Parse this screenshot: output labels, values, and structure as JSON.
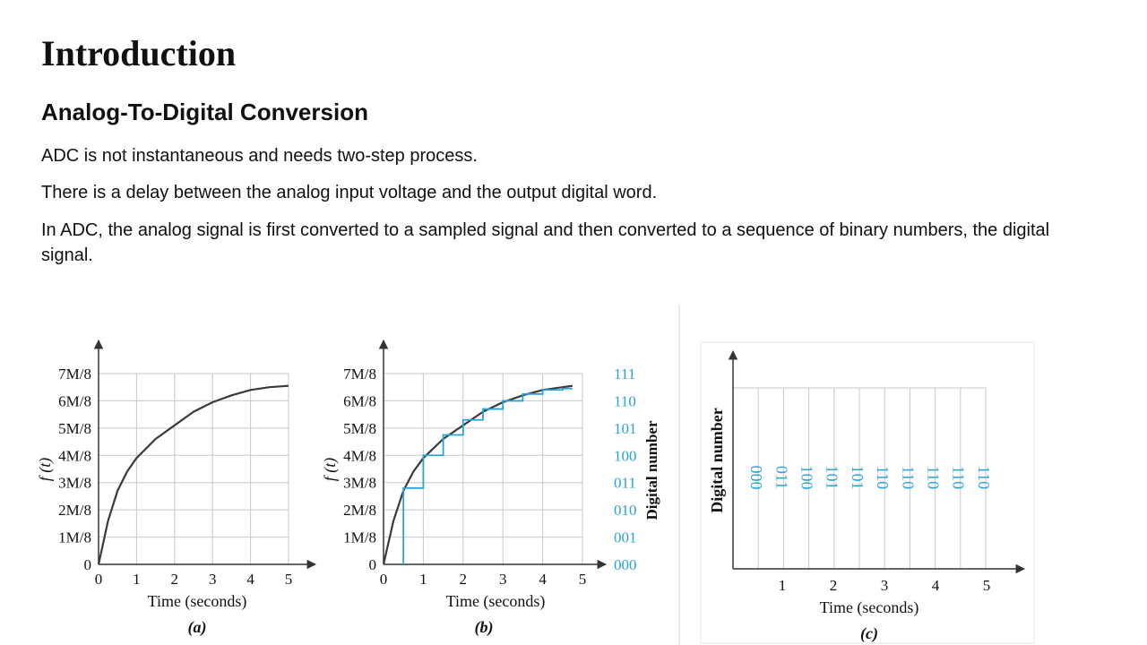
{
  "slide": {
    "title": "Introduction",
    "subtitle": "Analog-To-Digital Conversion",
    "paragraphs": [
      "ADC is not instantaneous and needs two-step process.",
      "There is a delay between the analog input voltage and the output digital word.",
      "In ADC, the analog signal is first converted to a sampled signal and then converted to a sequence of binary numbers, the digital signal."
    ]
  },
  "colors": {
    "curve": "#3a3a3a",
    "digital": "#29a3d6",
    "grid": "#c8c8c8",
    "text": "#111111"
  },
  "chart_data": [
    {
      "type": "line",
      "panel_label": "(a)",
      "xlabel": "Time (seconds)",
      "ylabel": "f (t)",
      "x_ticks": [
        "0",
        "1",
        "2",
        "3",
        "4",
        "5"
      ],
      "y_ticks": [
        "0",
        "1M/8",
        "2M/8",
        "3M/8",
        "4M/8",
        "5M/8",
        "6M/8",
        "7M/8"
      ],
      "xlim": [
        0,
        5
      ],
      "ylim": [
        0,
        7
      ],
      "grid": true,
      "series": [
        {
          "x": [
            0,
            0.25,
            0.5,
            0.75,
            1,
            1.5,
            2,
            2.5,
            3,
            3.5,
            4,
            4.5,
            5
          ],
          "y": [
            0,
            1.6,
            2.7,
            3.4,
            3.9,
            4.6,
            5.1,
            5.6,
            5.95,
            6.2,
            6.4,
            6.5,
            6.55
          ]
        }
      ]
    },
    {
      "type": "line",
      "panel_label": "(b)",
      "xlabel": "Time (seconds)",
      "ylabel": "f (t)",
      "y2label": "Digital number",
      "x_ticks": [
        "0",
        "1",
        "2",
        "3",
        "4",
        "5"
      ],
      "y_ticks": [
        "0",
        "1M/8",
        "2M/8",
        "3M/8",
        "4M/8",
        "5M/8",
        "6M/8",
        "7M/8"
      ],
      "y2_ticks": [
        "000",
        "001",
        "010",
        "011",
        "100",
        "101",
        "110",
        "111"
      ],
      "xlim": [
        0,
        5
      ],
      "ylim": [
        0,
        7
      ],
      "grid": true,
      "series": [
        {
          "x": [
            0,
            0.25,
            0.5,
            0.75,
            1,
            1.5,
            2,
            2.5,
            3,
            3.5,
            4,
            4.5,
            4.75
          ],
          "y": [
            0,
            1.6,
            2.7,
            3.4,
            3.9,
            4.6,
            5.1,
            5.6,
            5.95,
            6.2,
            6.4,
            6.5,
            6.55
          ]
        },
        {
          "step_x": [
            0.5,
            1,
            1.5,
            2,
            2.5,
            3,
            3.5,
            4,
            4.5
          ],
          "step_y": [
            2.8,
            4.0,
            4.75,
            5.3,
            5.7,
            6.0,
            6.25,
            6.4,
            6.45
          ]
        }
      ]
    },
    {
      "type": "table",
      "panel_label": "(c)",
      "xlabel": "Time (seconds)",
      "ylabel": "Digital number",
      "x_ticks": [
        "1",
        "2",
        "3",
        "4",
        "5"
      ],
      "values": [
        "000",
        "011",
        "100",
        "101",
        "101",
        "110",
        "110",
        "110",
        "110",
        "110"
      ]
    }
  ]
}
